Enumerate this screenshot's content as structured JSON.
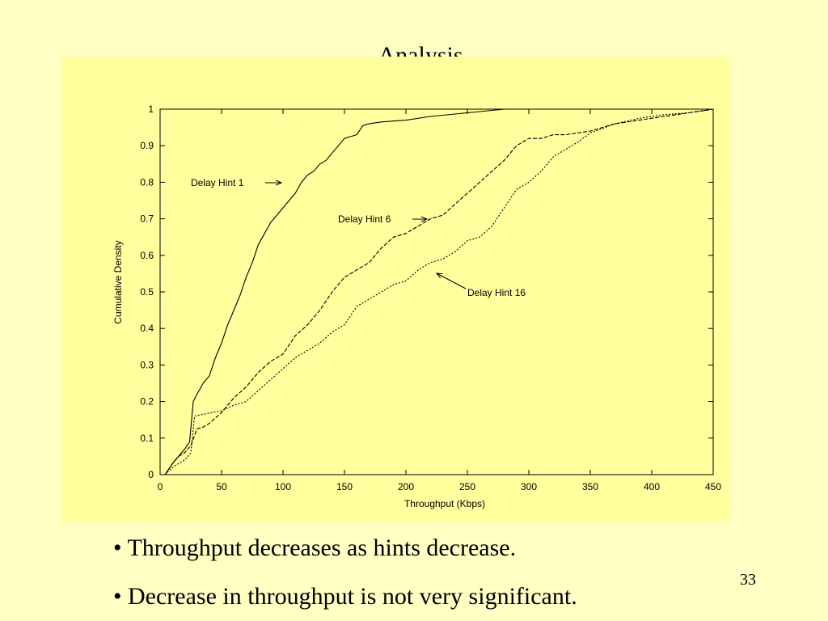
{
  "slide": {
    "title": "Analysis",
    "bullets": [
      "• Throughput decreases as hints decrease.",
      "• Decrease in throughput is not very significant."
    ],
    "page_number": "33"
  },
  "colors": {
    "background": "#ffffc4",
    "plot_background": "#ffff9e",
    "ink": "#000000"
  },
  "chart_data": {
    "type": "line",
    "title": "",
    "xlabel": "Throughput (Kbps)",
    "ylabel": "Cumulative Density",
    "xlim": [
      0,
      450
    ],
    "ylim": [
      0,
      1
    ],
    "x_ticks": [
      0,
      50,
      100,
      150,
      200,
      250,
      300,
      350,
      400,
      450
    ],
    "y_ticks": [
      0,
      0.1,
      0.2,
      0.3,
      0.4,
      0.5,
      0.6,
      0.7,
      0.8,
      0.9,
      1
    ],
    "x_tick_labels": [
      "0",
      "50",
      "100",
      "150",
      "200",
      "250",
      "300",
      "350",
      "400",
      "450"
    ],
    "y_tick_labels": [
      "0",
      "0.1",
      "0.2",
      "0.3",
      "0.4",
      "0.5",
      "0.6",
      "0.7",
      "0.8",
      "0.9",
      "1"
    ],
    "grid": false,
    "legend": "none",
    "series": [
      {
        "name": "Delay Hint 1",
        "style": "solid",
        "x": [
          4,
          10,
          15,
          20,
          24,
          27,
          30,
          35,
          40,
          45,
          50,
          55,
          60,
          65,
          70,
          75,
          80,
          85,
          90,
          95,
          100,
          105,
          110,
          115,
          120,
          125,
          130,
          135,
          140,
          145,
          150,
          155,
          160,
          165,
          170,
          180,
          200,
          220,
          250,
          280,
          300,
          350,
          400,
          450
        ],
        "y": [
          0,
          0.03,
          0.05,
          0.07,
          0.09,
          0.2,
          0.22,
          0.25,
          0.27,
          0.32,
          0.36,
          0.41,
          0.45,
          0.49,
          0.54,
          0.58,
          0.63,
          0.66,
          0.69,
          0.71,
          0.73,
          0.75,
          0.77,
          0.8,
          0.82,
          0.83,
          0.85,
          0.86,
          0.88,
          0.9,
          0.92,
          0.925,
          0.93,
          0.955,
          0.96,
          0.965,
          0.97,
          0.98,
          0.99,
          1.0,
          1.0,
          1.0,
          1.0,
          1.0
        ]
      },
      {
        "name": "Delay Hint 6",
        "style": "dashed",
        "x": [
          4,
          10,
          15,
          20,
          25,
          30,
          35,
          40,
          50,
          60,
          70,
          80,
          90,
          100,
          110,
          120,
          130,
          140,
          150,
          160,
          170,
          180,
          190,
          200,
          210,
          220,
          230,
          240,
          250,
          260,
          270,
          280,
          290,
          300,
          310,
          320,
          330,
          350,
          370,
          390,
          410,
          430,
          450
        ],
        "y": [
          0,
          0.03,
          0.05,
          0.06,
          0.08,
          0.125,
          0.13,
          0.14,
          0.17,
          0.21,
          0.24,
          0.28,
          0.31,
          0.33,
          0.38,
          0.41,
          0.45,
          0.5,
          0.54,
          0.56,
          0.58,
          0.62,
          0.65,
          0.66,
          0.68,
          0.7,
          0.71,
          0.74,
          0.77,
          0.8,
          0.83,
          0.86,
          0.9,
          0.92,
          0.92,
          0.93,
          0.93,
          0.94,
          0.96,
          0.97,
          0.98,
          0.99,
          1.0
        ]
      },
      {
        "name": "Delay Hint 16",
        "style": "dotted",
        "x": [
          4,
          10,
          15,
          20,
          25,
          28,
          35,
          50,
          60,
          70,
          80,
          90,
          100,
          110,
          120,
          130,
          140,
          150,
          160,
          170,
          180,
          190,
          200,
          210,
          220,
          230,
          240,
          250,
          260,
          270,
          280,
          290,
          300,
          310,
          320,
          340,
          350,
          370,
          390,
          410,
          430,
          450
        ],
        "y": [
          0,
          0.02,
          0.03,
          0.04,
          0.06,
          0.16,
          0.165,
          0.175,
          0.19,
          0.2,
          0.23,
          0.26,
          0.29,
          0.32,
          0.34,
          0.36,
          0.39,
          0.41,
          0.46,
          0.48,
          0.5,
          0.52,
          0.53,
          0.56,
          0.58,
          0.59,
          0.61,
          0.64,
          0.65,
          0.68,
          0.73,
          0.78,
          0.8,
          0.83,
          0.87,
          0.91,
          0.935,
          0.96,
          0.975,
          0.985,
          0.99,
          1.0
        ]
      }
    ],
    "annotations": [
      {
        "text": "Delay Hint 1",
        "target_series": 0
      },
      {
        "text": "Delay Hint 6",
        "target_series": 1
      },
      {
        "text": "Delay Hint 16",
        "target_series": 2
      }
    ]
  }
}
